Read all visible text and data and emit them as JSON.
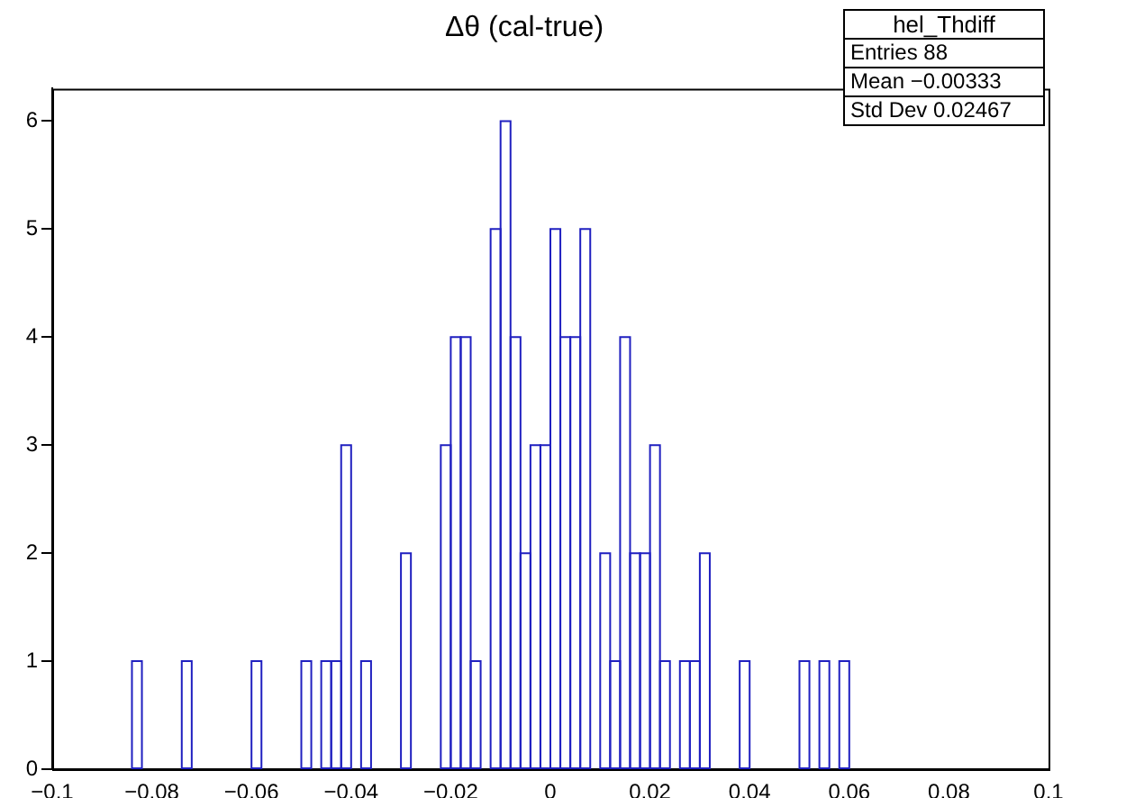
{
  "chart_data": {
    "type": "histogram",
    "title": "Δθ (cal-true)",
    "color": "#2020c0",
    "bins": [
      -0.1,
      -0.098,
      -0.096,
      -0.094,
      -0.092,
      -0.09,
      -0.088,
      -0.086,
      -0.084,
      -0.082,
      -0.08,
      -0.078,
      -0.076,
      -0.074,
      -0.072,
      -0.07,
      -0.068,
      -0.066,
      -0.064,
      -0.062,
      -0.06,
      -0.058,
      -0.056,
      -0.054,
      -0.052,
      -0.05,
      -0.048,
      -0.046,
      -0.044,
      -0.042,
      -0.04,
      -0.038,
      -0.036,
      -0.034,
      -0.032,
      -0.03,
      -0.028,
      -0.026,
      -0.024,
      -0.022,
      -0.02,
      -0.018,
      -0.016,
      -0.014,
      -0.012,
      -0.01,
      -0.008,
      -0.006,
      -0.004,
      -0.002,
      0,
      0.002,
      0.004,
      0.006,
      0.008,
      0.01,
      0.012,
      0.014,
      0.016,
      0.018,
      0.02,
      0.022,
      0.024,
      0.026,
      0.028,
      0.03,
      0.032,
      0.034,
      0.036,
      0.038,
      0.04,
      0.042,
      0.044,
      0.046,
      0.048,
      0.05,
      0.052,
      0.054,
      0.056,
      0.058,
      0.06,
      0.062,
      0.064,
      0.066,
      0.068,
      0.07,
      0.072,
      0.074,
      0.076,
      0.078,
      0.08,
      0.082,
      0.084,
      0.086,
      0.088,
      0.09,
      0.092,
      0.094,
      0.096,
      0.098,
      0.1
    ],
    "values": [
      0,
      0,
      0,
      0,
      0,
      0,
      0,
      0,
      1,
      0,
      0,
      0,
      0,
      1,
      0,
      0,
      0,
      0,
      0,
      0,
      1,
      0,
      0,
      0,
      0,
      1,
      0,
      1,
      1,
      3,
      0,
      1,
      0,
      0,
      0,
      2,
      0,
      0,
      0,
      3,
      4,
      4,
      1,
      0,
      5,
      6,
      4,
      2,
      3,
      3,
      5,
      4,
      4,
      5,
      0,
      2,
      1,
      4,
      2,
      2,
      3,
      1,
      0,
      1,
      1,
      2,
      0,
      0,
      0,
      1,
      0,
      0,
      0,
      0,
      0,
      1,
      0,
      1,
      0,
      1,
      0,
      0,
      0,
      0,
      0,
      0,
      0,
      0,
      0,
      0,
      0,
      0,
      0,
      0,
      0,
      0,
      0,
      0,
      0,
      0
    ],
    "xlim": [
      -0.1,
      0.1
    ],
    "xticks": [
      {
        "value": -0.1,
        "label": "−0.1"
      },
      {
        "value": -0.08,
        "label": "−0.08"
      },
      {
        "value": -0.06,
        "label": "−0.06"
      },
      {
        "value": -0.04,
        "label": "−0.04"
      },
      {
        "value": -0.02,
        "label": "−0.02"
      },
      0,
      0.02,
      0.04,
      0.06,
      0.08,
      0.1
    ],
    "ylim": [
      0,
      6.3
    ],
    "yticks": [
      0,
      1,
      2,
      3,
      4,
      5,
      6
    ],
    "grid": false,
    "legend": false,
    "annotations": [
      "hel_Thdiff",
      "Entries 88",
      "Mean −0.00333",
      "Std Dev 0.02467"
    ]
  }
}
